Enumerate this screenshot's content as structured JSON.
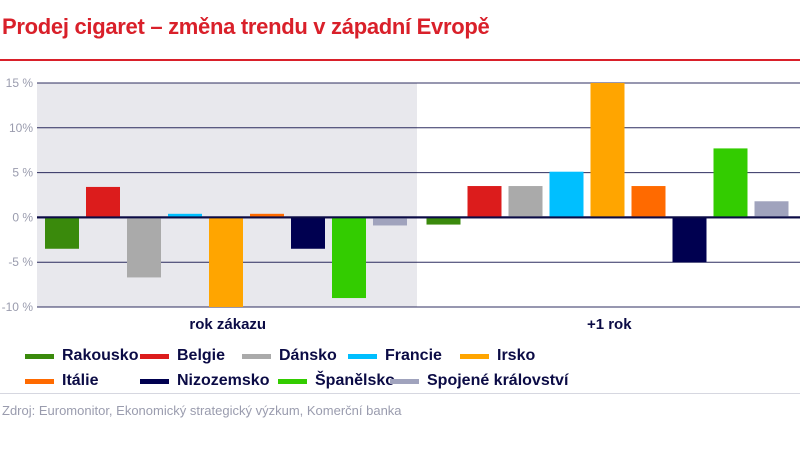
{
  "chart_data": {
    "type": "bar",
    "title": "Prodej cigaret – změna trendu v západní Evropě",
    "categories": [
      "rok zákazu",
      "+1 rok"
    ],
    "ylim": [
      -10,
      15
    ],
    "yticks": [
      {
        "value": 15,
        "label": "15 %"
      },
      {
        "value": 10,
        "label": "10%"
      },
      {
        "value": 5,
        "label": "5 %"
      },
      {
        "value": 0,
        "label": "0 %"
      },
      {
        "value": -5,
        "label": "-5 %"
      },
      {
        "value": -10,
        "label": "-10 %"
      }
    ],
    "grid": true,
    "legend_placement": "bottom",
    "shaded_category": "rok zákazu",
    "series": [
      {
        "name": "Rakousko",
        "color": "#3a8a0c",
        "values": [
          -3.5,
          -0.8
        ]
      },
      {
        "name": "Belgie",
        "color": "#dc1c1c",
        "values": [
          3.4,
          3.5
        ]
      },
      {
        "name": "Dánsko",
        "color": "#aaaaaa",
        "values": [
          -6.7,
          3.5
        ]
      },
      {
        "name": "Francie",
        "color": "#00bfff",
        "values": [
          0.4,
          5.1
        ]
      },
      {
        "name": "Irsko",
        "color": "#ffa500",
        "values": [
          -10,
          15
        ]
      },
      {
        "name": "Itálie",
        "color": "#ff6a00",
        "values": [
          0.4,
          3.5
        ]
      },
      {
        "name": "Nizozemsko",
        "color": "#000050",
        "values": [
          -3.5,
          -5
        ]
      },
      {
        "name": "Španělsko",
        "color": "#33cc00",
        "values": [
          -9,
          7.7
        ]
      },
      {
        "name": "Spojené království",
        "color": "#a0a3bd",
        "values": [
          -0.9,
          1.8
        ]
      }
    ]
  },
  "source": "Zdroj: Euromonitor, Ekonomický strategický výzkum, Komerční banka"
}
